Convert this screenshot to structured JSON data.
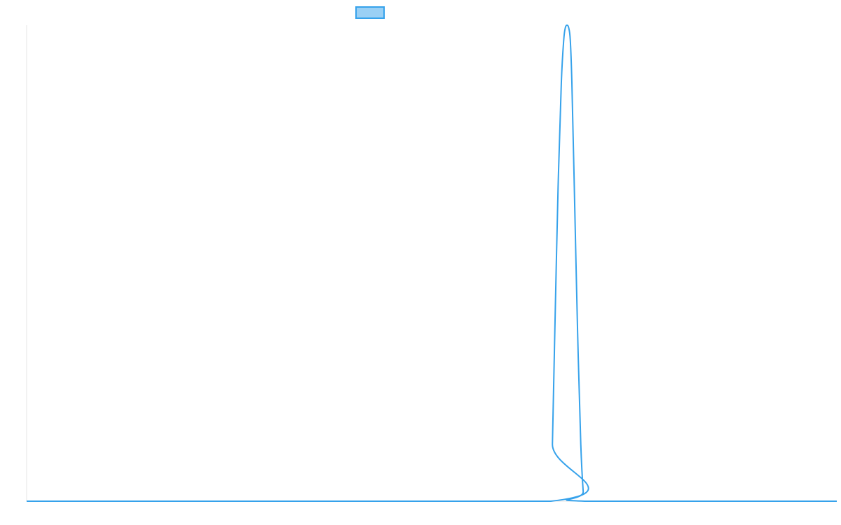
{
  "chart_data": {
    "type": "line",
    "title": "",
    "xlabel": "",
    "ylabel": "",
    "grid": false,
    "legend_position": "top-center",
    "xlim": [
      0,
      100
    ],
    "ylim": [
      0,
      1
    ],
    "series": [
      {
        "color": "#36a2eb",
        "fill": "#9ad0f5",
        "x": [
          0,
          64.7,
          64.9,
          65.2,
          65.6,
          66.0,
          66.3,
          66.5,
          66.7,
          66.9,
          67.1,
          67.3,
          67.6,
          68.0,
          68.4,
          68.7,
          68.9,
          100
        ],
        "values": [
          0,
          0,
          0.12,
          0.36,
          0.66,
          0.88,
          0.97,
          0.995,
          1.0,
          0.995,
          0.97,
          0.88,
          0.66,
          0.36,
          0.12,
          0.02,
          0,
          0
        ]
      }
    ]
  }
}
